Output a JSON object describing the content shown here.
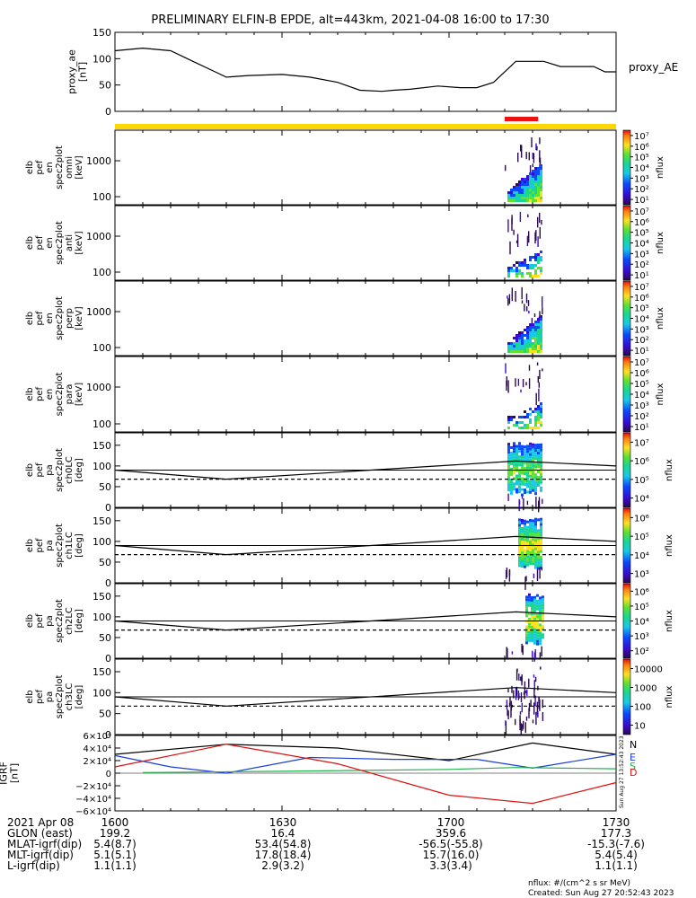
{
  "chart_data": {
    "title": "PRELIMINARY ELFIN-B EPDE, alt=443km, 2021-04-08 16:00 to 17:30",
    "type": "multi-panel time series / spectrogram",
    "x_range": [
      "16:00",
      "17:30"
    ],
    "panels": [
      {
        "id": "proxy_ae",
        "type": "line",
        "ylabel": [
          "proxy_ae",
          "[nT]"
        ],
        "ylim": [
          0,
          150
        ],
        "yticks": [
          0,
          50,
          100,
          150
        ],
        "legend": "proxy_AE",
        "x_minutes": [
          0,
          5,
          10,
          14,
          18,
          20,
          24,
          30,
          35,
          40,
          44,
          48,
          50,
          53,
          58,
          62,
          65,
          68,
          72,
          77,
          80,
          82,
          86,
          88,
          90
        ],
        "y": [
          115,
          120,
          115,
          95,
          75,
          65,
          68,
          70,
          65,
          55,
          40,
          38,
          40,
          42,
          48,
          45,
          45,
          55,
          95,
          95,
          85,
          85,
          85,
          75,
          75
        ]
      },
      {
        "id": "status_bar",
        "type": "bar",
        "segments": [
          {
            "start_min": 0,
            "end_min": 90,
            "color": "#ffd700"
          },
          {
            "start_min": 70,
            "end_min": 76,
            "color": "#ee1111"
          }
        ]
      },
      {
        "id": "en_omni",
        "type": "heatmap",
        "ylabel": [
          "elb",
          "pef",
          "en",
          "spec2plot",
          "omni",
          "[keV]"
        ],
        "yscale": "log",
        "yticks": [
          "1000",
          "100"
        ],
        "colorbar": {
          "label": "nflux",
          "ticks": [
            "10⁷",
            "10⁶",
            "10⁵",
            "10⁴",
            "10³",
            "10²",
            "10¹"
          ]
        }
      },
      {
        "id": "en_anti",
        "type": "heatmap",
        "ylabel": [
          "elb",
          "pef",
          "en",
          "spec2plot",
          "anti",
          "[keV]"
        ],
        "yscale": "log",
        "yticks": [
          "1000",
          "100"
        ],
        "colorbar": {
          "label": "nflux",
          "ticks": [
            "10⁷",
            "10⁶",
            "10⁵",
            "10⁴",
            "10³",
            "10²",
            "10¹"
          ]
        }
      },
      {
        "id": "en_perp",
        "type": "heatmap",
        "ylabel": [
          "elb",
          "pef",
          "en",
          "spec2plot",
          "perp",
          "[keV]"
        ],
        "yscale": "log",
        "yticks": [
          "1000",
          "100"
        ],
        "colorbar": {
          "label": "nflux",
          "ticks": [
            "10⁷",
            "10⁶",
            "10⁵",
            "10⁴",
            "10³",
            "10²",
            "10¹"
          ]
        }
      },
      {
        "id": "en_para",
        "type": "heatmap",
        "ylabel": [
          "elb",
          "pef",
          "en",
          "spec2plot",
          "para",
          "[keV]"
        ],
        "yscale": "log",
        "yticks": [
          "1000",
          "100"
        ],
        "colorbar": {
          "label": "nflux",
          "ticks": [
            "10⁷",
            "10⁶",
            "10⁵",
            "10⁴",
            "10³",
            "10²",
            "10¹"
          ]
        }
      },
      {
        "id": "pa_ch0",
        "type": "heatmap",
        "ylabel": [
          "elb",
          "pef",
          "pa",
          "spec2plot",
          "ch0LC",
          "[deg]"
        ],
        "ylim": [
          0,
          180
        ],
        "yticks": [
          "150",
          "100",
          "50",
          "0"
        ],
        "colorbar": {
          "label": "nflux",
          "ticks": [
            "10⁷",
            "10⁶",
            "10⁵",
            "10⁴"
          ]
        }
      },
      {
        "id": "pa_ch1",
        "type": "heatmap",
        "ylabel": [
          "elb",
          "pef",
          "pa",
          "spec2plot",
          "ch1LC",
          "[deg]"
        ],
        "ylim": [
          0,
          180
        ],
        "yticks": [
          "150",
          "100",
          "50",
          "0"
        ],
        "colorbar": {
          "label": "nflux",
          "ticks": [
            "10⁶",
            "10⁵",
            "10⁴",
            "10³"
          ]
        }
      },
      {
        "id": "pa_ch2",
        "type": "heatmap",
        "ylabel": [
          "elb",
          "pef",
          "pa",
          "spec2plot",
          "ch2LC",
          "[deg]"
        ],
        "ylim": [
          0,
          180
        ],
        "yticks": [
          "150",
          "100",
          "50",
          "0"
        ],
        "colorbar": {
          "label": "nflux",
          "ticks": [
            "10⁶",
            "10⁵",
            "10⁴",
            "10³",
            "10²"
          ]
        }
      },
      {
        "id": "pa_ch3",
        "type": "heatmap",
        "ylabel": [
          "elb",
          "pef",
          "pa",
          "spec2plot",
          "ch3LC",
          "[deg]"
        ],
        "ylim": [
          0,
          180
        ],
        "yticks": [
          "150",
          "100",
          "50",
          "0"
        ],
        "colorbar": {
          "label": "nflux",
          "ticks": [
            "10000",
            "1000",
            "100",
            "10"
          ]
        }
      },
      {
        "id": "igrf",
        "type": "line",
        "ylabel": [
          "IGRF",
          "[nT]"
        ],
        "ylim": [
          -60000,
          60000
        ],
        "yticks": [
          "6×10⁴",
          "4×10⁴",
          "2×10⁴",
          "0",
          "−2×10⁴",
          "−4×10⁴",
          "−6×10⁴"
        ],
        "series": [
          {
            "name": "N",
            "color": "#000000",
            "x_minutes": [
              0,
              20,
              40,
              60,
              75,
              90
            ],
            "y": [
              30000,
              46000,
              40000,
              20000,
              48000,
              30000
            ]
          },
          {
            "name": "E",
            "color": "#1a3fd6",
            "x_minutes": [
              0,
              10,
              20,
              35,
              50,
              65,
              75,
              90
            ],
            "y": [
              28000,
              10000,
              0,
              25000,
              22000,
              22000,
              8000,
              30000
            ]
          },
          {
            "name": "S",
            "color": "#22b14c",
            "x_minutes": [
              5,
              30,
              60,
              72,
              90
            ],
            "y": [
              1000,
              3000,
              6000,
              9000,
              7000
            ]
          },
          {
            "name": "D",
            "color": "#dd1111",
            "x_minutes": [
              0,
              20,
              40,
              60,
              75,
              90
            ],
            "y": [
              10000,
              46000,
              15000,
              -35000,
              -48000,
              -15000
            ]
          }
        ]
      }
    ],
    "x_axis_table": {
      "rows": [
        {
          "label": "2021 Apr 08",
          "values": [
            "1600",
            "1630",
            "1700",
            "1730"
          ]
        },
        {
          "label": "GLON (east)",
          "values": [
            "199.2",
            "16.4",
            "359.6",
            "177.3"
          ]
        },
        {
          "label": "MLAT-igrf(dip)",
          "values": [
            "5.4(8.7)",
            "53.4(54.8)",
            "-56.5(-55.8)",
            "-15.3(-7.6)"
          ]
        },
        {
          "label": "MLT-igrf(dip)",
          "values": [
            "5.1(5.1)",
            "17.8(18.4)",
            "15.7(16.0)",
            "5.4(5.4)"
          ]
        },
        {
          "label": "L-igrf(dip)",
          "values": [
            "1.1(1.1)",
            "2.9(3.2)",
            "3.3(3.4)",
            "1.1(1.1)"
          ]
        }
      ]
    },
    "footer": [
      "nflux: #/(cm^2 s sr MeV)",
      "Created: Sun Aug 27 20:52:43 2023"
    ],
    "side_stamp": "Sun Aug 27 13:52:43 2023"
  }
}
